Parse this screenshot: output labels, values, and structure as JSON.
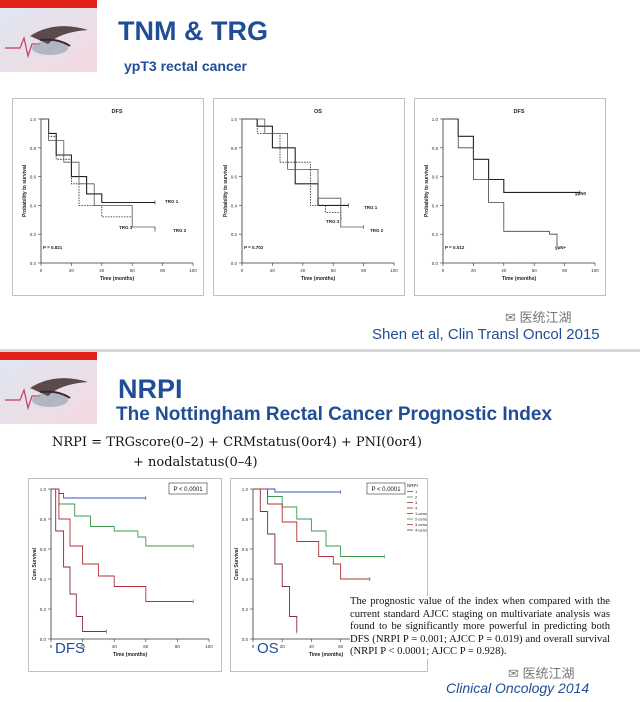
{
  "slide1": {
    "title": "TNM & TRG",
    "subtitle": "ypT3 rectal cancer",
    "citation": "Shen et al, Clin Transl Oncol 2015",
    "watermark": "医统江湖",
    "ylabel": "Probability to survival",
    "xlabel": "Time (months)",
    "plots": [
      {
        "title": "DFS",
        "pvalue": "P = 0.821",
        "labels": [
          "TRG 1",
          "TRG 3",
          "TRG 2"
        ]
      },
      {
        "title": "OS",
        "pvalue": "P = 0.702",
        "labels": [
          "TRG 1",
          "TRG 3",
          "TRG 2"
        ]
      },
      {
        "title": "DFS",
        "pvalue": "P = 0.012",
        "labels": [
          "ypN0",
          "ypN+"
        ]
      }
    ],
    "yticks": [
      "1.0",
      "0.8",
      "0.6",
      "0.4",
      "0.2",
      "0.0"
    ],
    "xticks": [
      "0",
      "20",
      "40",
      "60",
      "80",
      "100"
    ]
  },
  "slide2": {
    "title": "NRPI",
    "subtitle": "The Nottingham Rectal Cancer Prognostic Index",
    "formula_line1": "NRPI  =  TRGscore(0–2)  +  CRMstatus(0or4)  +  PNI(0or4)",
    "formula_line2": "+  nodalstatus(0–4)",
    "ylabel": "Cum Survival",
    "xlabel": "Time (months)",
    "plots": [
      {
        "label": "DFS",
        "pvalue": "P < 0.0001"
      },
      {
        "label": "OS",
        "pvalue": "P < 0.0001"
      }
    ],
    "yticks": [
      "1.0",
      "0.8",
      "0.6",
      "0.4",
      "0.2",
      "0.0"
    ],
    "xticks": [
      "0",
      "20",
      "40",
      "60",
      "80",
      "100"
    ],
    "legend_title": "NRPI",
    "legend": [
      "1",
      "2",
      "3",
      "4",
      "1-censored",
      "2-censored",
      "3-censored",
      "4-censored"
    ],
    "quote": "The prognostic value of the index when compared with the current standard AJCC staging on multivariate analysis was found to be significantly more powerful in predicting both DFS (NRPI P = 0.001; AJCC P = 0.019) and overall survival (NRPI P < 0.0001; AJCC P = 0.928).",
    "citation": "Clinical Oncology 2014",
    "watermark": "医统江湖"
  },
  "colors": {
    "title_blue": "#1f4e96",
    "accent_red": "#e2231a",
    "km_blue": "#3b4fd0",
    "km_green": "#3a9a4a",
    "km_red": "#b03038",
    "km_maroon": "#8a2a3a"
  },
  "chart_data": [
    {
      "type": "line",
      "title": "DFS",
      "xlabel": "Time (months)",
      "ylabel": "Probability to survival",
      "xlim": [
        0,
        100
      ],
      "ylim": [
        0,
        1
      ],
      "series": [
        {
          "name": "TRG 1",
          "x": [
            0,
            5,
            10,
            20,
            30,
            40,
            75
          ],
          "y": [
            1.0,
            0.9,
            0.75,
            0.6,
            0.48,
            0.42,
            0.42
          ]
        },
        {
          "name": "TRG 3",
          "x": [
            0,
            5,
            10,
            20,
            25,
            40,
            60
          ],
          "y": [
            1.0,
            0.88,
            0.72,
            0.55,
            0.4,
            0.32,
            0.32
          ]
        },
        {
          "name": "TRG 2",
          "x": [
            0,
            5,
            15,
            25,
            35,
            60,
            75
          ],
          "y": [
            1.0,
            0.85,
            0.7,
            0.55,
            0.4,
            0.25,
            0.23
          ]
        }
      ]
    },
    {
      "type": "line",
      "title": "OS",
      "xlabel": "Time (months)",
      "ylabel": "Probability to survival",
      "xlim": [
        0,
        100
      ],
      "ylim": [
        0,
        1
      ],
      "series": [
        {
          "name": "TRG 1",
          "x": [
            0,
            10,
            20,
            35,
            50,
            70
          ],
          "y": [
            1.0,
            0.95,
            0.8,
            0.55,
            0.4,
            0.4
          ]
        },
        {
          "name": "TRG 3",
          "x": [
            0,
            10,
            25,
            45,
            55,
            65
          ],
          "y": [
            1.0,
            0.9,
            0.7,
            0.4,
            0.35,
            0.3
          ]
        },
        {
          "name": "TRG 2",
          "x": [
            0,
            15,
            30,
            50,
            65,
            80
          ],
          "y": [
            1.0,
            0.9,
            0.65,
            0.45,
            0.25,
            0.25
          ]
        }
      ]
    },
    {
      "type": "line",
      "title": "DFS",
      "xlabel": "Time (months)",
      "ylabel": "Probability to survival",
      "xlim": [
        0,
        100
      ],
      "ylim": [
        0,
        1
      ],
      "series": [
        {
          "name": "ypN0",
          "x": [
            0,
            10,
            20,
            30,
            40,
            60,
            90
          ],
          "y": [
            1.0,
            0.88,
            0.72,
            0.58,
            0.49,
            0.49,
            0.49
          ]
        },
        {
          "name": "ypN+",
          "x": [
            0,
            10,
            20,
            30,
            40,
            55,
            70,
            75
          ],
          "y": [
            1.0,
            0.8,
            0.58,
            0.42,
            0.22,
            0.22,
            0.2,
            0.12
          ]
        }
      ]
    },
    {
      "type": "line",
      "title": "",
      "annotation": "DFS",
      "xlabel": "Time (months)",
      "ylabel": "Cum Survival",
      "xlim": [
        0,
        100
      ],
      "ylim": [
        0,
        1
      ],
      "series": [
        {
          "name": "1",
          "x": [
            0,
            5,
            8,
            60
          ],
          "y": [
            1.0,
            0.97,
            0.94,
            0.94
          ]
        },
        {
          "name": "2",
          "x": [
            0,
            5,
            15,
            25,
            40,
            55,
            60,
            90
          ],
          "y": [
            1.0,
            0.9,
            0.82,
            0.75,
            0.72,
            0.68,
            0.62,
            0.62
          ]
        },
        {
          "name": "3",
          "x": [
            0,
            5,
            12,
            20,
            30,
            40,
            55,
            60,
            90
          ],
          "y": [
            1.0,
            0.8,
            0.62,
            0.5,
            0.42,
            0.35,
            0.35,
            0.25,
            0.25
          ]
        },
        {
          "name": "4",
          "x": [
            0,
            3,
            8,
            12,
            16,
            20,
            35
          ],
          "y": [
            1.0,
            0.72,
            0.48,
            0.3,
            0.15,
            0.05,
            0.05
          ]
        }
      ]
    },
    {
      "type": "line",
      "title": "",
      "annotation": "OS",
      "xlabel": "Time (months)",
      "ylabel": "Cum Survival",
      "xlim": [
        0,
        100
      ],
      "ylim": [
        0,
        1
      ],
      "series": [
        {
          "name": "1",
          "x": [
            0,
            15,
            60
          ],
          "y": [
            1.0,
            0.98,
            0.98
          ]
        },
        {
          "name": "2",
          "x": [
            0,
            10,
            20,
            30,
            40,
            50,
            60,
            90
          ],
          "y": [
            1.0,
            0.95,
            0.88,
            0.8,
            0.72,
            0.62,
            0.55,
            0.55
          ]
        },
        {
          "name": "3",
          "x": [
            0,
            10,
            20,
            30,
            45,
            55,
            60,
            80
          ],
          "y": [
            1.0,
            0.9,
            0.78,
            0.65,
            0.55,
            0.5,
            0.4,
            0.4
          ]
        },
        {
          "name": "4",
          "x": [
            0,
            5,
            10,
            15,
            20,
            25,
            30
          ],
          "y": [
            1.0,
            0.85,
            0.7,
            0.5,
            0.35,
            0.15,
            0.05
          ]
        }
      ]
    }
  ]
}
